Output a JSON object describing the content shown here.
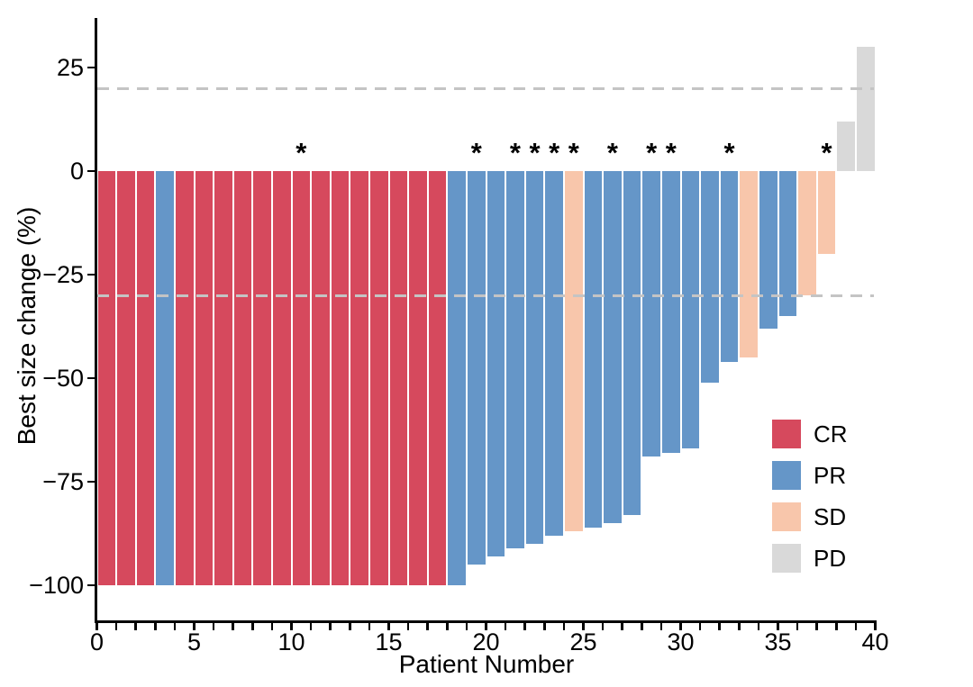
{
  "chart_data": {
    "type": "bar",
    "title": "",
    "xlabel": "Patient Number",
    "ylabel": "Best size change (%)",
    "xlim": [
      0,
      40
    ],
    "ylim": [
      -100,
      30
    ],
    "x_major_ticks": [
      0,
      5,
      10,
      15,
      20,
      25,
      30,
      35,
      40
    ],
    "x_tick_labels": [
      "0",
      "5",
      "10",
      "15",
      "20",
      "25",
      "30",
      "35",
      "40"
    ],
    "x_minor_tick_step": 1,
    "y_ticks": [
      25,
      0,
      -25,
      -50,
      -75,
      -100
    ],
    "y_tick_labels": [
      "25",
      "0",
      "−25",
      "−50",
      "−75",
      "−100"
    ],
    "reference_lines_y": [
      20,
      -30
    ],
    "grid": "off",
    "legend_position": "right-lower",
    "legend": [
      {
        "label": "CR"
      },
      {
        "label": "PR"
      },
      {
        "label": "SD"
      },
      {
        "label": "PD"
      }
    ],
    "annotation_symbol": "*",
    "patients": [
      {
        "patient": 1,
        "value": -100,
        "response": "CR",
        "star": false
      },
      {
        "patient": 2,
        "value": -100,
        "response": "CR",
        "star": false
      },
      {
        "patient": 3,
        "value": -100,
        "response": "CR",
        "star": false
      },
      {
        "patient": 4,
        "value": -100,
        "response": "PR",
        "star": false
      },
      {
        "patient": 5,
        "value": -100,
        "response": "CR",
        "star": false
      },
      {
        "patient": 6,
        "value": -100,
        "response": "CR",
        "star": false
      },
      {
        "patient": 7,
        "value": -100,
        "response": "CR",
        "star": false
      },
      {
        "patient": 8,
        "value": -100,
        "response": "CR",
        "star": false
      },
      {
        "patient": 9,
        "value": -100,
        "response": "CR",
        "star": false
      },
      {
        "patient": 10,
        "value": -100,
        "response": "CR",
        "star": false
      },
      {
        "patient": 11,
        "value": -100,
        "response": "CR",
        "star": true
      },
      {
        "patient": 12,
        "value": -100,
        "response": "CR",
        "star": false
      },
      {
        "patient": 13,
        "value": -100,
        "response": "CR",
        "star": false
      },
      {
        "patient": 14,
        "value": -100,
        "response": "CR",
        "star": false
      },
      {
        "patient": 15,
        "value": -100,
        "response": "CR",
        "star": false
      },
      {
        "patient": 16,
        "value": -100,
        "response": "CR",
        "star": false
      },
      {
        "patient": 17,
        "value": -100,
        "response": "CR",
        "star": false
      },
      {
        "patient": 18,
        "value": -100,
        "response": "CR",
        "star": false
      },
      {
        "patient": 19,
        "value": -100,
        "response": "PR",
        "star": false
      },
      {
        "patient": 20,
        "value": -95,
        "response": "PR",
        "star": true
      },
      {
        "patient": 21,
        "value": -93,
        "response": "PR",
        "star": false
      },
      {
        "patient": 22,
        "value": -91,
        "response": "PR",
        "star": true
      },
      {
        "patient": 23,
        "value": -90,
        "response": "PR",
        "star": true
      },
      {
        "patient": 24,
        "value": -88,
        "response": "PR",
        "star": true
      },
      {
        "patient": 25,
        "value": -87,
        "response": "SD",
        "star": true
      },
      {
        "patient": 26,
        "value": -86,
        "response": "PR",
        "star": false
      },
      {
        "patient": 27,
        "value": -85,
        "response": "PR",
        "star": true
      },
      {
        "patient": 28,
        "value": -83,
        "response": "PR",
        "star": false
      },
      {
        "patient": 29,
        "value": -69,
        "response": "PR",
        "star": true
      },
      {
        "patient": 30,
        "value": -68,
        "response": "PR",
        "star": true
      },
      {
        "patient": 31,
        "value": -67,
        "response": "PR",
        "star": false
      },
      {
        "patient": 32,
        "value": -51,
        "response": "PR",
        "star": false
      },
      {
        "patient": 33,
        "value": -46,
        "response": "PR",
        "star": true
      },
      {
        "patient": 34,
        "value": -45,
        "response": "SD",
        "star": false
      },
      {
        "patient": 35,
        "value": -38,
        "response": "PR",
        "star": false
      },
      {
        "patient": 36,
        "value": -35,
        "response": "PR",
        "star": false
      },
      {
        "patient": 37,
        "value": -30,
        "response": "SD",
        "star": false
      },
      {
        "patient": 38,
        "value": -20,
        "response": "SD",
        "star": true
      },
      {
        "patient": 39,
        "value": 12,
        "response": "PD",
        "star": false
      },
      {
        "patient": 40,
        "value": 30,
        "response": "PD",
        "star": false
      }
    ],
    "colors": {
      "CR": "#D6495D",
      "PR": "#6596C8",
      "SD": "#F8C6AB",
      "PD": "#D9D9D9",
      "reference_line": "#C4C4C4",
      "axis": "#000000",
      "text": "#000000"
    }
  }
}
